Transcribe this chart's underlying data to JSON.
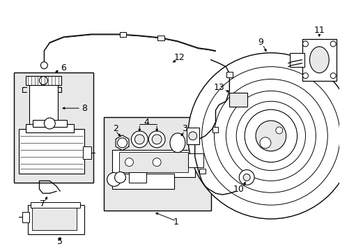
{
  "bg": "#ffffff",
  "lc": "#000000",
  "gray_fill": "#e8e8e8",
  "white": "#ffffff",
  "figsize": [
    4.89,
    3.6
  ],
  "dpi": 100
}
